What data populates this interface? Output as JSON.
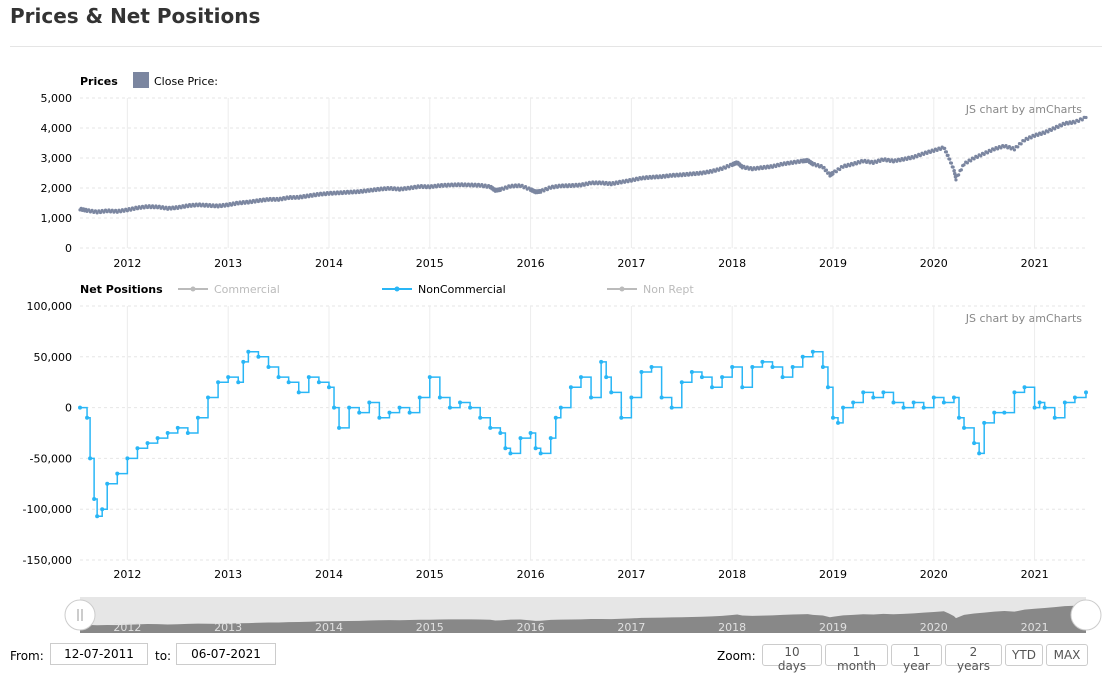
{
  "page": {
    "title": "Prices & Net Positions"
  },
  "chart_data": [
    {
      "type": "scatter",
      "panel": "prices",
      "legend_title": "Prices",
      "series": [
        {
          "name": "Close Price:",
          "color": "#7b86a0"
        }
      ],
      "ylim": [
        0,
        5000
      ],
      "yticks": [
        "0",
        "1,000",
        "2,000",
        "3,000",
        "4,000",
        "5,000"
      ],
      "ytick_values": [
        0,
        1000,
        2000,
        3000,
        4000,
        5000
      ],
      "xticks": [
        "2012",
        "2013",
        "2014",
        "2015",
        "2016",
        "2017",
        "2018",
        "2019",
        "2020",
        "2021"
      ],
      "xtick_values": [
        2012,
        2013,
        2014,
        2015,
        2016,
        2017,
        2018,
        2019,
        2020,
        2021
      ],
      "xlim": [
        2011.53,
        2021.51
      ],
      "grid": true,
      "credit": "JS chart by amCharts",
      "points": [
        [
          2011.53,
          1300
        ],
        [
          2011.6,
          1250
        ],
        [
          2011.7,
          1200
        ],
        [
          2011.8,
          1240
        ],
        [
          2011.9,
          1220
        ],
        [
          2012.0,
          1270
        ],
        [
          2012.1,
          1340
        ],
        [
          2012.2,
          1380
        ],
        [
          2012.3,
          1370
        ],
        [
          2012.4,
          1320
        ],
        [
          2012.5,
          1350
        ],
        [
          2012.6,
          1410
        ],
        [
          2012.7,
          1440
        ],
        [
          2012.8,
          1420
        ],
        [
          2012.9,
          1400
        ],
        [
          2013.0,
          1440
        ],
        [
          2013.1,
          1500
        ],
        [
          2013.2,
          1530
        ],
        [
          2013.3,
          1580
        ],
        [
          2013.4,
          1620
        ],
        [
          2013.5,
          1620
        ],
        [
          2013.6,
          1680
        ],
        [
          2013.7,
          1690
        ],
        [
          2013.8,
          1740
        ],
        [
          2013.9,
          1790
        ],
        [
          2014.0,
          1820
        ],
        [
          2014.1,
          1840
        ],
        [
          2014.2,
          1860
        ],
        [
          2014.3,
          1880
        ],
        [
          2014.4,
          1920
        ],
        [
          2014.5,
          1960
        ],
        [
          2014.6,
          1990
        ],
        [
          2014.7,
          1960
        ],
        [
          2014.8,
          2000
        ],
        [
          2014.9,
          2050
        ],
        [
          2015.0,
          2040
        ],
        [
          2015.1,
          2080
        ],
        [
          2015.2,
          2100
        ],
        [
          2015.3,
          2110
        ],
        [
          2015.4,
          2100
        ],
        [
          2015.5,
          2090
        ],
        [
          2015.6,
          2040
        ],
        [
          2015.65,
          1920
        ],
        [
          2015.7,
          1950
        ],
        [
          2015.8,
          2060
        ],
        [
          2015.9,
          2080
        ],
        [
          2016.0,
          1950
        ],
        [
          2016.05,
          1870
        ],
        [
          2016.1,
          1890
        ],
        [
          2016.2,
          2020
        ],
        [
          2016.3,
          2070
        ],
        [
          2016.4,
          2080
        ],
        [
          2016.5,
          2100
        ],
        [
          2016.6,
          2170
        ],
        [
          2016.7,
          2170
        ],
        [
          2016.8,
          2140
        ],
        [
          2016.9,
          2200
        ],
        [
          2017.0,
          2260
        ],
        [
          2017.1,
          2330
        ],
        [
          2017.2,
          2360
        ],
        [
          2017.3,
          2380
        ],
        [
          2017.4,
          2420
        ],
        [
          2017.5,
          2440
        ],
        [
          2017.6,
          2470
        ],
        [
          2017.7,
          2500
        ],
        [
          2017.8,
          2560
        ],
        [
          2017.9,
          2650
        ],
        [
          2018.0,
          2780
        ],
        [
          2018.05,
          2850
        ],
        [
          2018.1,
          2700
        ],
        [
          2018.2,
          2640
        ],
        [
          2018.3,
          2680
        ],
        [
          2018.4,
          2720
        ],
        [
          2018.5,
          2800
        ],
        [
          2018.6,
          2850
        ],
        [
          2018.7,
          2900
        ],
        [
          2018.75,
          2920
        ],
        [
          2018.8,
          2800
        ],
        [
          2018.9,
          2700
        ],
        [
          2018.97,
          2430
        ],
        [
          2019.0,
          2500
        ],
        [
          2019.1,
          2720
        ],
        [
          2019.2,
          2800
        ],
        [
          2019.3,
          2900
        ],
        [
          2019.4,
          2850
        ],
        [
          2019.5,
          2950
        ],
        [
          2019.6,
          2900
        ],
        [
          2019.7,
          2960
        ],
        [
          2019.8,
          3030
        ],
        [
          2019.9,
          3150
        ],
        [
          2020.0,
          3250
        ],
        [
          2020.1,
          3350
        ],
        [
          2020.15,
          3000
        ],
        [
          2020.2,
          2600
        ],
        [
          2020.22,
          2300
        ],
        [
          2020.3,
          2800
        ],
        [
          2020.4,
          3000
        ],
        [
          2020.5,
          3150
        ],
        [
          2020.6,
          3300
        ],
        [
          2020.7,
          3400
        ],
        [
          2020.8,
          3300
        ],
        [
          2020.9,
          3600
        ],
        [
          2021.0,
          3750
        ],
        [
          2021.1,
          3850
        ],
        [
          2021.2,
          4000
        ],
        [
          2021.3,
          4150
        ],
        [
          2021.4,
          4200
        ],
        [
          2021.51,
          4350
        ]
      ]
    },
    {
      "type": "line",
      "panel": "net_positions",
      "legend_title": "Net Positions",
      "series": [
        {
          "name": "Commercial",
          "color": "#bbbbbb",
          "visible": false
        },
        {
          "name": "NonCommercial",
          "color": "#29b6f6",
          "visible": true
        },
        {
          "name": "Non Rept",
          "color": "#bbbbbb",
          "visible": false
        }
      ],
      "ylim": [
        -150000,
        100000
      ],
      "yticks": [
        "-150,000",
        "-100,000",
        "-50,000",
        "0",
        "50,000",
        "100,000"
      ],
      "ytick_values": [
        -150000,
        -100000,
        -50000,
        0,
        50000,
        100000
      ],
      "xticks": [
        "2012",
        "2013",
        "2014",
        "2015",
        "2016",
        "2017",
        "2018",
        "2019",
        "2020",
        "2021"
      ],
      "xtick_values": [
        2012,
        2013,
        2014,
        2015,
        2016,
        2017,
        2018,
        2019,
        2020,
        2021
      ],
      "xlim": [
        2011.53,
        2021.51
      ],
      "grid": true,
      "credit": "JS chart by amCharts",
      "points": [
        [
          2011.53,
          0
        ],
        [
          2011.6,
          -10000
        ],
        [
          2011.63,
          -50000
        ],
        [
          2011.67,
          -90000
        ],
        [
          2011.7,
          -107000
        ],
        [
          2011.75,
          -100000
        ],
        [
          2011.8,
          -75000
        ],
        [
          2011.9,
          -65000
        ],
        [
          2012.0,
          -50000
        ],
        [
          2012.1,
          -40000
        ],
        [
          2012.2,
          -35000
        ],
        [
          2012.3,
          -30000
        ],
        [
          2012.4,
          -25000
        ],
        [
          2012.5,
          -20000
        ],
        [
          2012.6,
          -25000
        ],
        [
          2012.7,
          -10000
        ],
        [
          2012.8,
          10000
        ],
        [
          2012.9,
          25000
        ],
        [
          2013.0,
          30000
        ],
        [
          2013.1,
          25000
        ],
        [
          2013.15,
          45000
        ],
        [
          2013.2,
          55000
        ],
        [
          2013.3,
          50000
        ],
        [
          2013.4,
          40000
        ],
        [
          2013.5,
          30000
        ],
        [
          2013.6,
          25000
        ],
        [
          2013.7,
          15000
        ],
        [
          2013.8,
          30000
        ],
        [
          2013.9,
          25000
        ],
        [
          2014.0,
          20000
        ],
        [
          2014.05,
          0
        ],
        [
          2014.1,
          -20000
        ],
        [
          2014.2,
          0
        ],
        [
          2014.3,
          -5000
        ],
        [
          2014.4,
          5000
        ],
        [
          2014.5,
          -10000
        ],
        [
          2014.6,
          -5000
        ],
        [
          2014.7,
          0
        ],
        [
          2014.8,
          -5000
        ],
        [
          2014.9,
          10000
        ],
        [
          2015.0,
          30000
        ],
        [
          2015.1,
          10000
        ],
        [
          2015.2,
          0
        ],
        [
          2015.3,
          5000
        ],
        [
          2015.4,
          0
        ],
        [
          2015.5,
          -10000
        ],
        [
          2015.6,
          -20000
        ],
        [
          2015.7,
          -25000
        ],
        [
          2015.75,
          -40000
        ],
        [
          2015.8,
          -45000
        ],
        [
          2015.9,
          -30000
        ],
        [
          2016.0,
          -25000
        ],
        [
          2016.05,
          -40000
        ],
        [
          2016.1,
          -45000
        ],
        [
          2016.2,
          -30000
        ],
        [
          2016.25,
          -10000
        ],
        [
          2016.3,
          0
        ],
        [
          2016.4,
          20000
        ],
        [
          2016.5,
          30000
        ],
        [
          2016.6,
          10000
        ],
        [
          2016.7,
          45000
        ],
        [
          2016.75,
          30000
        ],
        [
          2016.8,
          15000
        ],
        [
          2016.9,
          -10000
        ],
        [
          2017.0,
          10000
        ],
        [
          2017.1,
          35000
        ],
        [
          2017.2,
          40000
        ],
        [
          2017.3,
          10000
        ],
        [
          2017.4,
          0
        ],
        [
          2017.5,
          25000
        ],
        [
          2017.6,
          35000
        ],
        [
          2017.7,
          30000
        ],
        [
          2017.8,
          20000
        ],
        [
          2017.9,
          30000
        ],
        [
          2018.0,
          40000
        ],
        [
          2018.1,
          20000
        ],
        [
          2018.2,
          40000
        ],
        [
          2018.3,
          45000
        ],
        [
          2018.4,
          40000
        ],
        [
          2018.5,
          30000
        ],
        [
          2018.6,
          40000
        ],
        [
          2018.7,
          50000
        ],
        [
          2018.8,
          55000
        ],
        [
          2018.9,
          40000
        ],
        [
          2018.95,
          20000
        ],
        [
          2019.0,
          -10000
        ],
        [
          2019.05,
          -15000
        ],
        [
          2019.1,
          0
        ],
        [
          2019.2,
          5000
        ],
        [
          2019.3,
          15000
        ],
        [
          2019.4,
          10000
        ],
        [
          2019.5,
          15000
        ],
        [
          2019.6,
          5000
        ],
        [
          2019.7,
          0
        ],
        [
          2019.8,
          5000
        ],
        [
          2019.9,
          0
        ],
        [
          2020.0,
          10000
        ],
        [
          2020.1,
          5000
        ],
        [
          2020.2,
          10000
        ],
        [
          2020.25,
          -10000
        ],
        [
          2020.3,
          -20000
        ],
        [
          2020.4,
          -35000
        ],
        [
          2020.45,
          -45000
        ],
        [
          2020.5,
          -15000
        ],
        [
          2020.6,
          -5000
        ],
        [
          2020.7,
          -5000
        ],
        [
          2020.8,
          15000
        ],
        [
          2020.9,
          20000
        ],
        [
          2021.0,
          0
        ],
        [
          2021.05,
          5000
        ],
        [
          2021.1,
          0
        ],
        [
          2021.2,
          -10000
        ],
        [
          2021.3,
          5000
        ],
        [
          2021.4,
          10000
        ],
        [
          2021.51,
          15000
        ]
      ]
    }
  ],
  "navigator": {
    "xticks": [
      "2012",
      "2013",
      "2014",
      "2015",
      "2016",
      "2017",
      "2018",
      "2019",
      "2020",
      "2021"
    ]
  },
  "controls": {
    "from_label": "From:",
    "from_value": "12-07-2011",
    "to_label": "to:",
    "to_value": "06-07-2021",
    "zoom_label": "Zoom:",
    "zoom_buttons": [
      "10 days",
      "1 month",
      "1 year",
      "2 years",
      "YTD",
      "MAX"
    ]
  }
}
